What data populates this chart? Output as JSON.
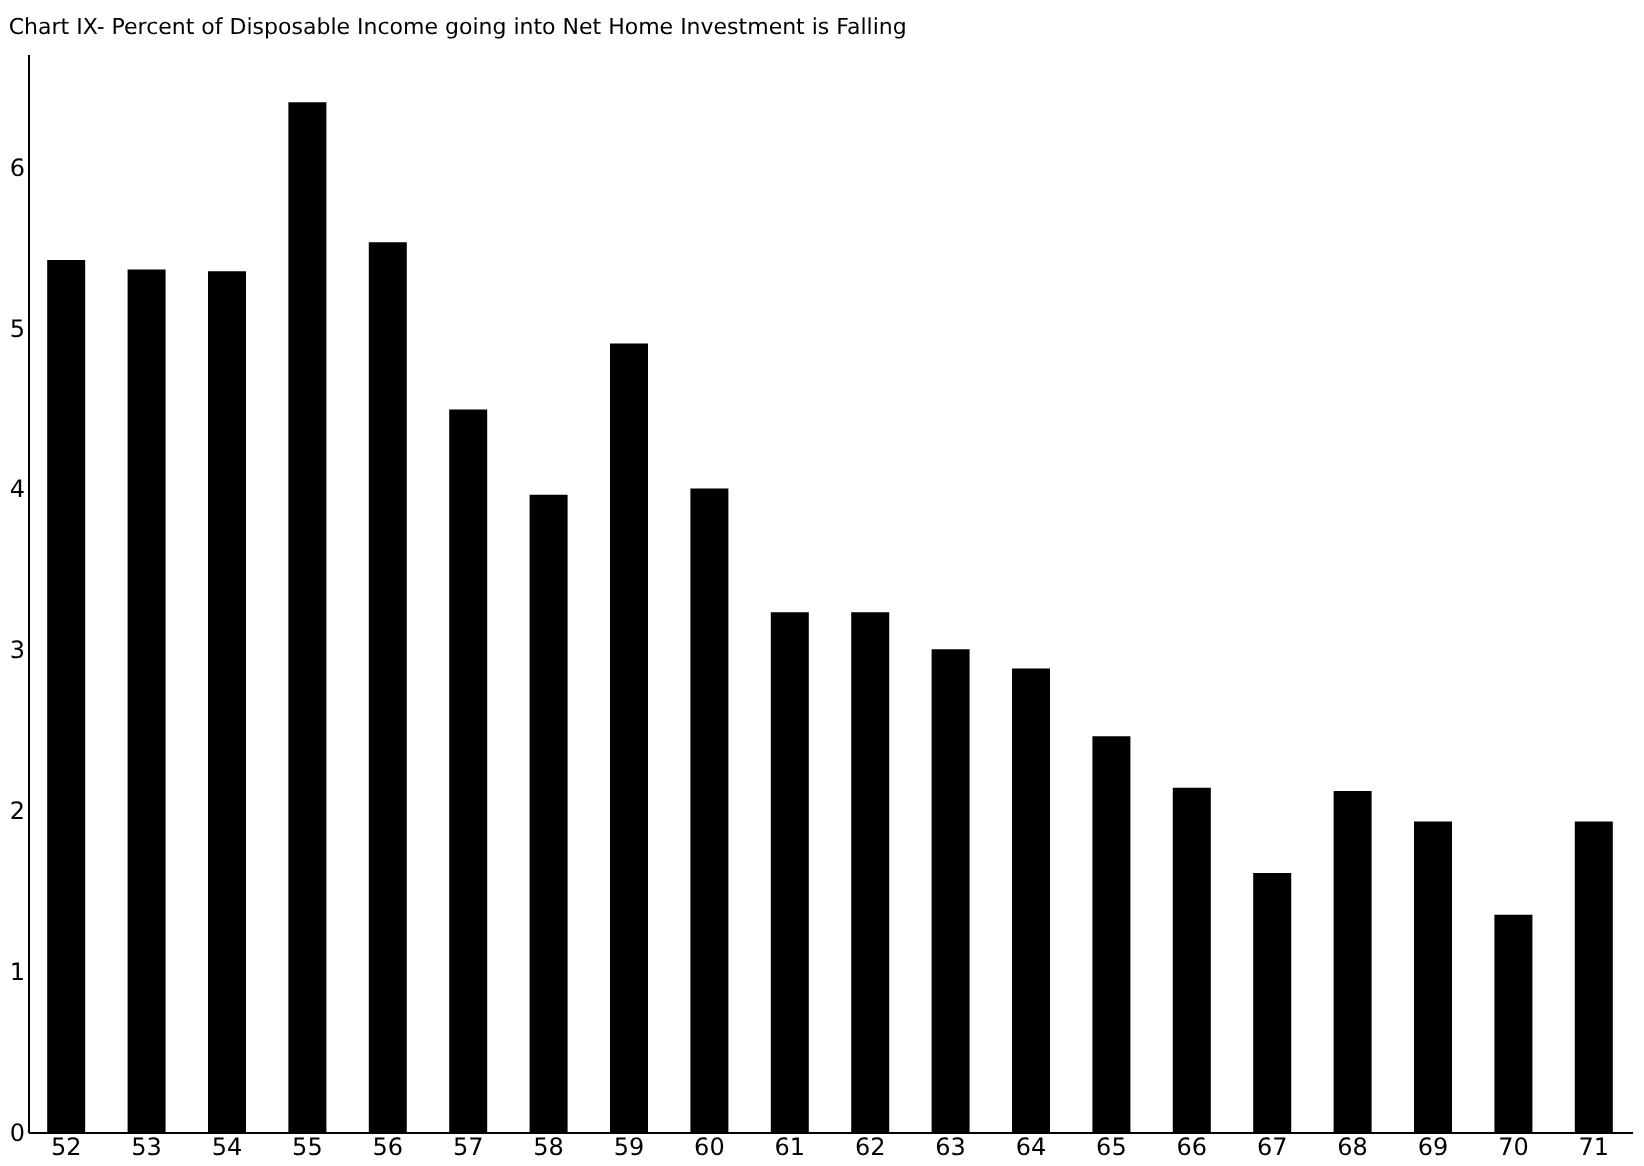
{
  "chart_data": {
    "type": "bar",
    "title": "Chart IX- Percent of Disposable Income going into Net Home Investment is Falling",
    "categories": [
      "52",
      "53",
      "54",
      "55",
      "56",
      "57",
      "58",
      "59",
      "60",
      "61",
      "62",
      "63",
      "64",
      "65",
      "66",
      "67",
      "68",
      "69",
      "70",
      "71"
    ],
    "values": [
      5.42,
      5.36,
      5.35,
      6.4,
      5.53,
      4.49,
      3.96,
      4.9,
      4.0,
      3.23,
      3.23,
      3.0,
      2.88,
      2.46,
      2.14,
      1.61,
      2.12,
      1.93,
      1.35,
      1.93
    ],
    "color": "#000000",
    "ylim": [
      0,
      6.7
    ],
    "yticks": [
      0,
      1,
      2,
      3,
      4,
      5,
      6
    ],
    "grid": false
  }
}
